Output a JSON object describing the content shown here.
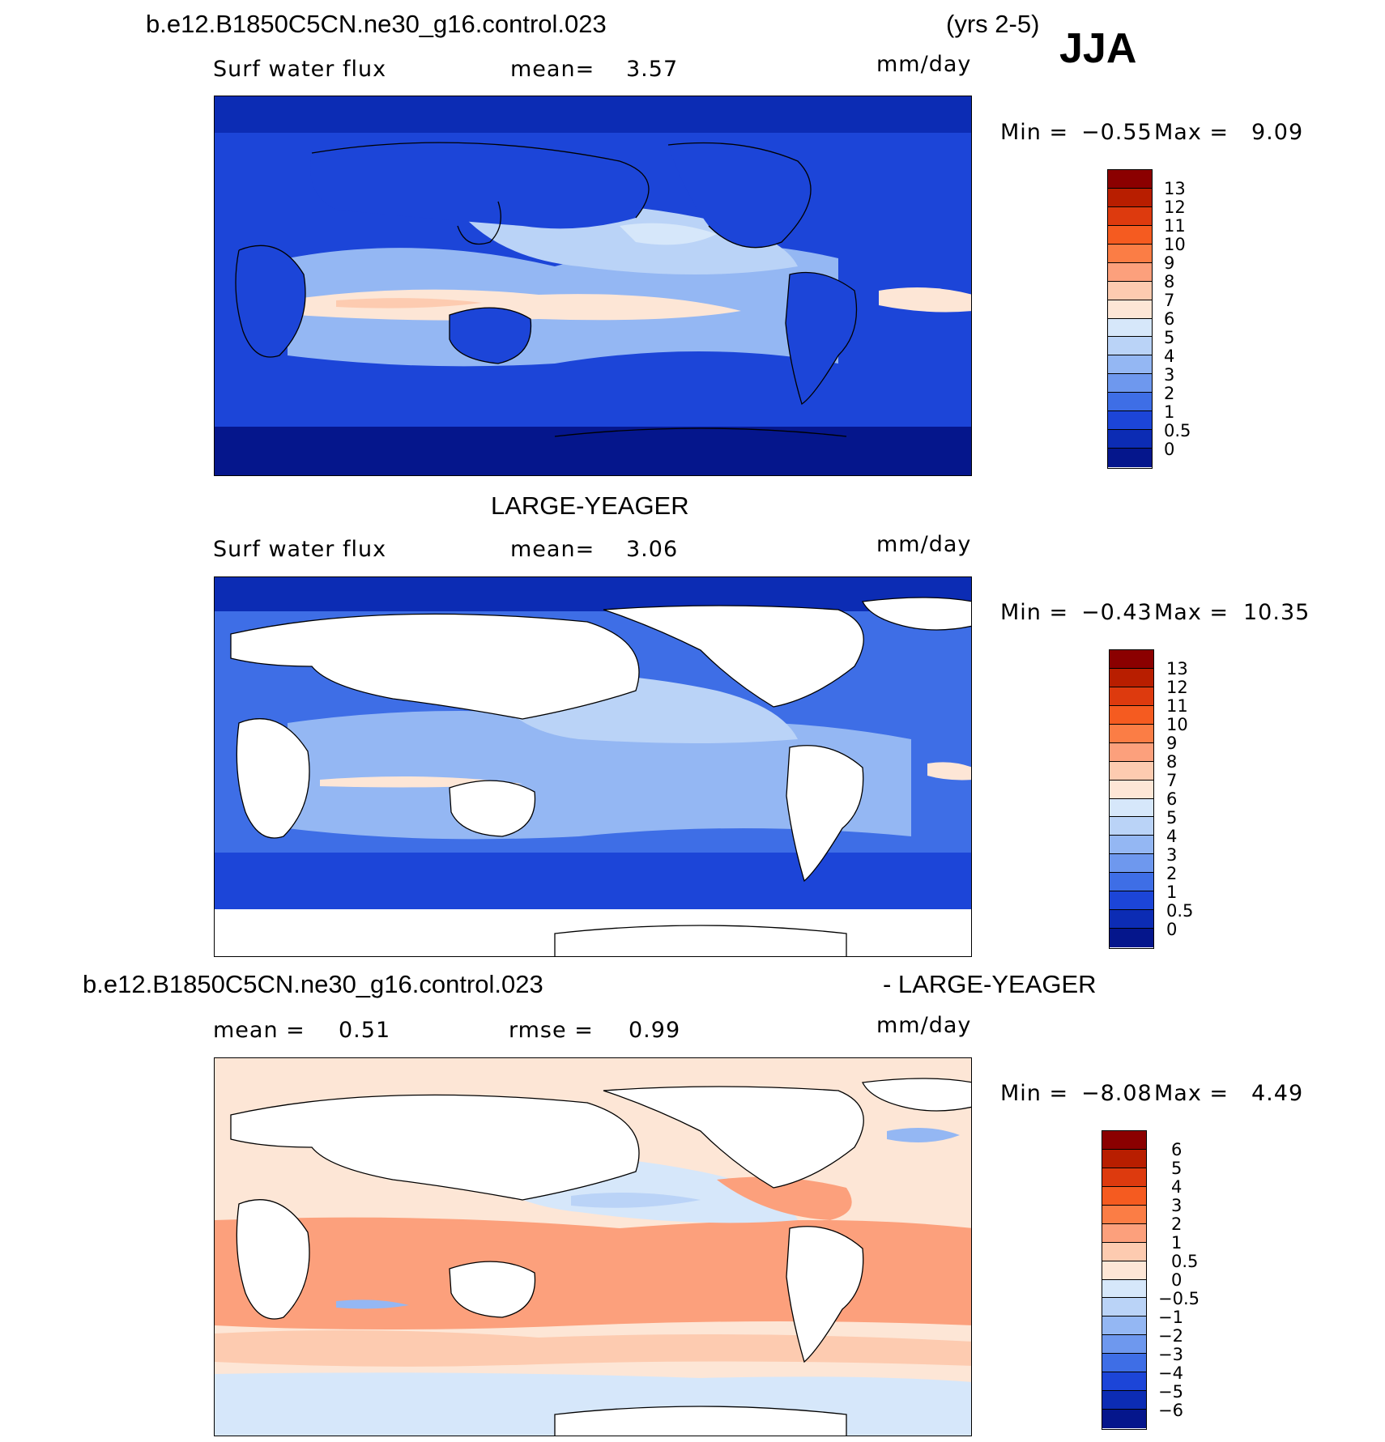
{
  "season": "JJA",
  "panel1": {
    "case": "b.e12.B1850C5CN.ne30_g16.control.023",
    "years": "(yrs 2-5)",
    "field": "Surf water flux",
    "mean_label": "mean=",
    "mean_value": "3.57",
    "units": "mm/day",
    "min_label": "Min  =",
    "min_value": "−0.55",
    "max_label": "Max  =",
    "max_value": "9.09",
    "levels": [
      "13",
      "12",
      "11",
      "10",
      "9",
      "8",
      "7",
      "6",
      "5",
      "4",
      "3",
      "2",
      "1",
      "0.5",
      "0"
    ],
    "colors": [
      "#8b0000",
      "#b81e00",
      "#dd3a0e",
      "#f55b20",
      "#fb7d45",
      "#fca07c",
      "#fdcbb0",
      "#fde6d6",
      "#d6e7fa",
      "#bad3f7",
      "#94b7f3",
      "#6e98ee",
      "#3e6ee6",
      "#1c45d8",
      "#0c2cb4",
      "#05168c"
    ]
  },
  "panel2": {
    "case": "LARGE-YEAGER",
    "field": "Surf water flux",
    "mean_label": "mean=",
    "mean_value": "3.06",
    "units": "mm/day",
    "min_label": "Min  =",
    "min_value": "−0.43",
    "max_label": "Max  =",
    "max_value": "10.35",
    "levels": [
      "13",
      "12",
      "11",
      "10",
      "9",
      "8",
      "7",
      "6",
      "5",
      "4",
      "3",
      "2",
      "1",
      "0.5",
      "0"
    ]
  },
  "panel3": {
    "case_a": "b.e12.B1850C5CN.ne30_g16.control.023",
    "case_b": "- LARGE-YEAGER",
    "mean_label": "mean  =",
    "mean_value": "0.51",
    "rmse_label": "rmse  =",
    "rmse_value": "0.99",
    "units": "mm/day",
    "min_label": "Min  =",
    "min_value": "−8.08",
    "max_label": "Max  =",
    "max_value": "4.49",
    "levels": [
      "6",
      "5",
      "4",
      "3",
      "2",
      "1",
      "0.5",
      "0",
      "−0.5",
      "−1",
      "−2",
      "−3",
      "−4",
      "−5",
      "−6"
    ],
    "colors": [
      "#8b0000",
      "#b81e00",
      "#dd3a0e",
      "#f55b20",
      "#fb7d45",
      "#fca07c",
      "#fdcbb0",
      "#fde6d6",
      "#d6e7fa",
      "#bad3f7",
      "#94b7f3",
      "#6e98ee",
      "#3e6ee6",
      "#1c45d8",
      "#0c2cb4",
      "#05168c"
    ]
  }
}
